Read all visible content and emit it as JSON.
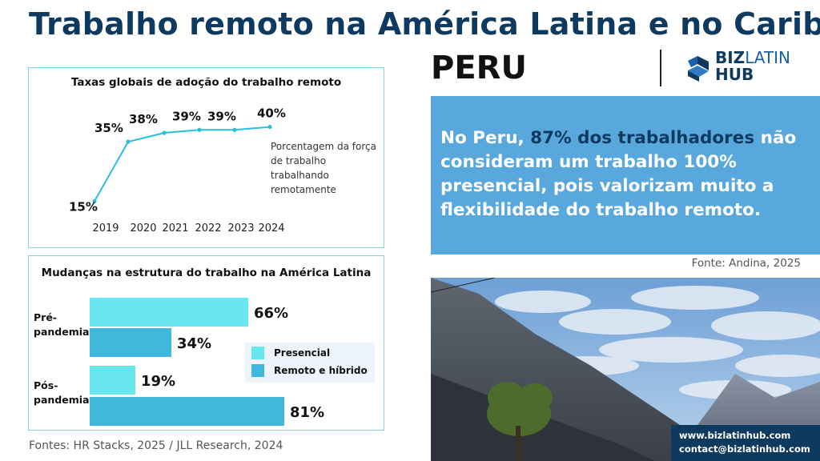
{
  "header": {
    "title": "Trabalho remoto na América Latina e no Caribe:",
    "country": "PERU",
    "logo_line1_a": "BIZ",
    "logo_line1_b": "LATIN",
    "logo_line2": "HUB"
  },
  "quote": {
    "part1": "No Peru, ",
    "highlight": "87% dos trabalhadores",
    "part2": " não consideram um trabalho 100% presencial, pois valorizam muito a flexibilidade do trabalho remoto.",
    "source": "Fonte: Andina, 2025"
  },
  "footer": {
    "sources": "Fontes: HR Stacks, 2025 / JLL Research, 2024",
    "website": "www.bizlatinhub.com",
    "email": "contact@bizlatinhub.com"
  },
  "colors": {
    "navy": "#0f3a5f",
    "blue_box": "#58a8de",
    "line": "#27c0d8",
    "presencial": "#6ae6ee",
    "remoto": "#40b8dc"
  },
  "chart_data": [
    {
      "type": "line",
      "title": "Taxas globais de adoção do trabalho remoto",
      "x": [
        "2019",
        "2020",
        "2021",
        "2022",
        "2023",
        "2024"
      ],
      "series": [
        {
          "values": [
            15,
            35,
            38,
            39,
            39,
            40
          ]
        }
      ],
      "data_labels": [
        "15%",
        "35%",
        "38%",
        "39%",
        "39%",
        "40%"
      ],
      "annotation": "Porcentagem da força de trabalho trabalhando remotamente",
      "ylim": [
        10,
        45
      ],
      "grid": false
    },
    {
      "type": "bar",
      "orientation": "horizontal",
      "title": "Mudanças na estrutura do trabalho na América Latina",
      "categories": [
        "Pré-pandemia",
        "Pós-pandemia"
      ],
      "series": [
        {
          "name": "Presencial",
          "values": [
            66,
            19
          ],
          "labels": [
            "66%",
            "19%"
          ]
        },
        {
          "name": "Remoto e híbrido",
          "values": [
            34,
            81
          ],
          "labels": [
            "34%",
            "81%"
          ]
        }
      ],
      "xlim": [
        0,
        100
      ],
      "legend": "center-right"
    }
  ]
}
